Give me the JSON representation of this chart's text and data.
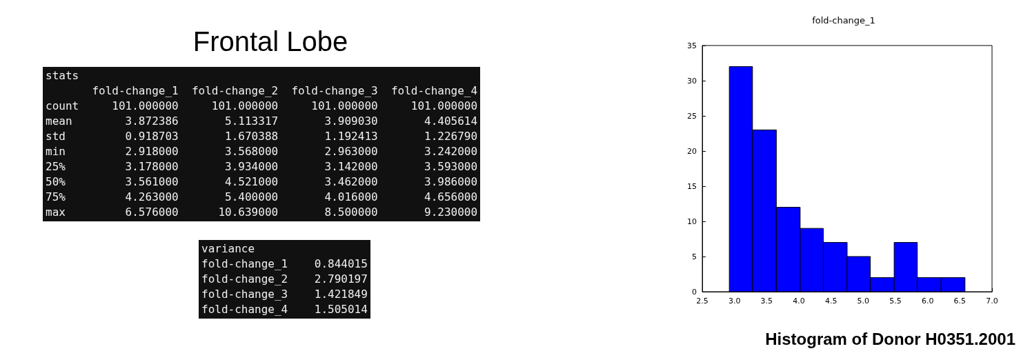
{
  "chart_data": [
    {
      "type": "other",
      "title": "Frontal Lobe",
      "annotations": [
        "stats",
        "       fold-change_1  fold-change_2  fold-change_3  fold-change_4",
        "count     101.000000     101.000000     101.000000     101.000000",
        "mean        3.872386       5.113317       3.909030       4.405614",
        "std         0.918703       1.670388       1.192413       1.226790",
        "min         2.918000       3.568000       2.963000       3.242000",
        "25%         3.178000       3.934000       3.142000       3.593000",
        "50%         3.561000       4.521000       3.462000       3.986000",
        "75%         4.263000       5.400000       4.016000       4.656000",
        "max         6.576000      10.639000       8.500000       9.230000"
      ]
    },
    {
      "type": "other",
      "annotations": [
        "variance",
        "fold-change_1    0.844015",
        "fold-change_2    2.790197",
        "fold-change_3    1.421849",
        "fold-change_4    1.505014"
      ]
    },
    {
      "type": "histogram",
      "title": "fold-change_1",
      "color": "#0000ff",
      "bins": [
        2.92,
        3.28,
        3.65,
        4.02,
        4.38,
        4.75,
        5.11,
        5.48,
        5.84,
        6.21,
        6.58
      ],
      "values": [
        32,
        23,
        12,
        9,
        7,
        5,
        2,
        7,
        2,
        2
      ],
      "xlim": [
        2.5,
        7.0
      ],
      "xticks": [
        {
          "value": 2.5,
          "label": "2.5"
        },
        {
          "value": 3,
          "label": "3.0"
        },
        {
          "value": 3.5,
          "label": "3.5"
        },
        {
          "value": 4,
          "label": "4.0"
        },
        {
          "value": 4.5,
          "label": "4.5"
        },
        {
          "value": 5,
          "label": "5.0"
        },
        {
          "value": 5.5,
          "label": "5.5"
        },
        {
          "value": 6,
          "label": "6.0"
        },
        {
          "value": 6.5,
          "label": "6.5"
        },
        {
          "value": 7,
          "label": "7.0"
        }
      ],
      "ylim": [
        0,
        35
      ],
      "yticks": [
        0,
        5,
        10,
        15,
        20,
        25,
        30,
        35
      ],
      "annotations": [
        "Histogram of Donor H0351.2001"
      ]
    }
  ]
}
